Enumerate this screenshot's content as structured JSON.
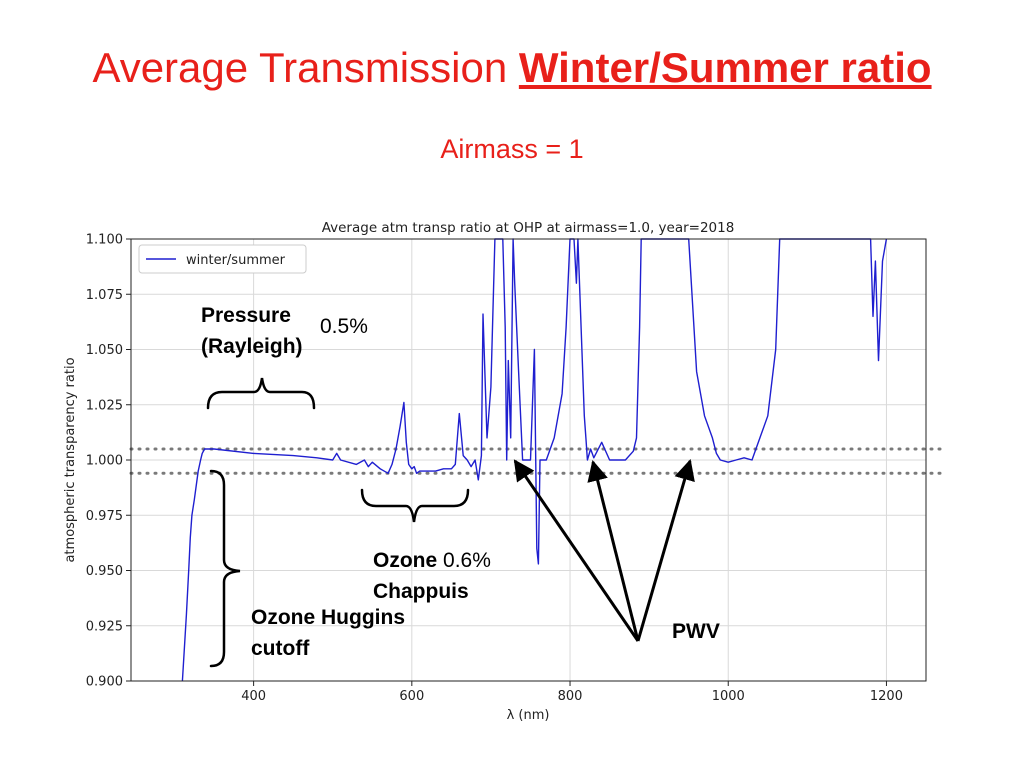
{
  "slide": {
    "title_plain": "Average Transmission",
    "title_emph": "Winter/Summer ratio",
    "subtitle": "Airmass = 1"
  },
  "annotations": {
    "pressure_line1": "Pressure",
    "pressure_line2": "(Rayleigh)",
    "pressure_pct": "0.5%",
    "ozone_chappuis_line1": "Ozone",
    "ozone_chappuis_pct": "0.6%",
    "ozone_chappuis_line2": "Chappuis",
    "ozone_huggins_line1": "Ozone Huggins",
    "ozone_huggins_line2": "cutoff",
    "pwv": "PWV"
  },
  "colors": {
    "title": "#e8201a",
    "series": "#1f1fd0",
    "band": "#7a7a7a"
  },
  "chart_data": {
    "type": "line",
    "title": "Average atm transp ratio at OHP at airmass=1.0, year=2018",
    "xlabel": "λ (nm)",
    "ylabel": "atmospheric transparency ratio",
    "xlim": [
      245,
      1250
    ],
    "ylim": [
      0.9,
      1.1
    ],
    "xticks": [
      400,
      600,
      800,
      1000,
      1200
    ],
    "yticks": [
      0.9,
      0.925,
      0.95,
      0.975,
      1.0,
      1.025,
      1.05,
      1.075,
      1.1
    ],
    "ytick_labels": [
      "0.900",
      "0.925",
      "0.950",
      "0.975",
      "1.000",
      "1.025",
      "1.050",
      "1.075",
      "1.100"
    ],
    "grid": true,
    "legend": "top-left",
    "reference_lines": [
      1.005,
      0.994
    ],
    "series": [
      {
        "name": "winter/summer",
        "x": [
          310,
          315,
          318,
          320,
          322,
          325,
          328,
          330,
          333,
          335,
          338,
          340,
          345,
          350,
          400,
          450,
          480,
          500,
          505,
          510,
          530,
          540,
          545,
          550,
          560,
          570,
          575,
          580,
          585,
          590,
          593,
          596,
          600,
          603,
          606,
          610,
          620,
          630,
          640,
          650,
          655,
          660,
          665,
          670,
          675,
          680,
          684,
          688,
          690,
          695,
          700,
          702,
          705,
          710,
          715,
          718,
          720,
          722,
          725,
          728,
          730,
          735,
          740,
          750,
          755,
          758,
          760,
          762,
          764,
          770,
          780,
          790,
          795,
          800,
          805,
          808,
          810,
          815,
          818,
          820,
          822,
          826,
          830,
          840,
          850,
          860,
          870,
          880,
          884,
          888,
          890,
          895,
          900,
          920,
          940,
          950,
          960,
          970,
          980,
          985,
          990,
          1000,
          1010,
          1020,
          1030,
          1040,
          1050,
          1060,
          1065,
          1070,
          1075,
          1080,
          1150,
          1160,
          1170,
          1175,
          1180,
          1183,
          1186,
          1190,
          1195,
          1200
        ],
        "y": [
          0.9,
          0.93,
          0.95,
          0.965,
          0.975,
          0.982,
          0.99,
          0.995,
          1.0,
          1.003,
          1.005,
          1.005,
          1.005,
          1.005,
          1.003,
          1.002,
          1.001,
          1.0,
          1.003,
          1.0,
          0.998,
          1.0,
          0.997,
          0.999,
          0.996,
          0.994,
          0.998,
          1.005,
          1.015,
          1.026,
          1.008,
          0.998,
          0.996,
          0.997,
          0.994,
          0.995,
          0.995,
          0.995,
          0.996,
          0.996,
          0.998,
          1.021,
          1.002,
          1.0,
          0.997,
          1.0,
          0.991,
          1.002,
          1.066,
          1.01,
          1.033,
          1.06,
          1.1,
          1.1,
          1.1,
          1.06,
          1.0,
          1.045,
          1.01,
          1.1,
          1.08,
          1.04,
          1.0,
          1.0,
          1.05,
          0.96,
          0.953,
          1.0,
          1.0,
          1.0,
          1.01,
          1.03,
          1.06,
          1.1,
          1.1,
          1.08,
          1.1,
          1.05,
          1.02,
          1.01,
          1.0,
          1.005,
          1.001,
          1.008,
          1.0,
          1.0,
          1.0,
          1.004,
          1.01,
          1.06,
          1.1,
          1.1,
          1.1,
          1.1,
          1.1,
          1.1,
          1.04,
          1.02,
          1.01,
          1.003,
          1.0,
          0.999,
          1.0,
          1.001,
          1.0,
          1.01,
          1.02,
          1.05,
          1.1,
          1.1,
          1.1,
          1.1,
          1.1,
          1.1,
          1.1,
          1.1,
          1.1,
          1.065,
          1.09,
          1.045,
          1.09,
          1.1
        ]
      }
    ]
  }
}
